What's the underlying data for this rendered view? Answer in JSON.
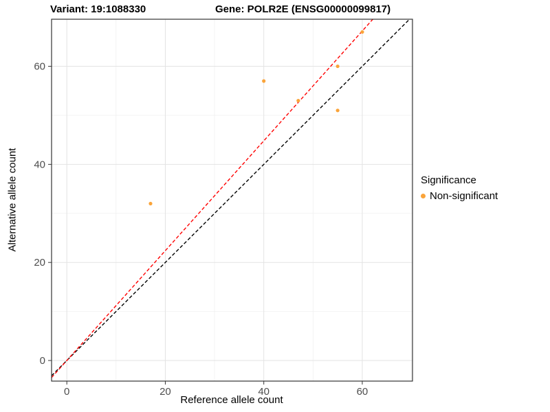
{
  "titles": {
    "left": "Variant: 19:1088330",
    "right": "Gene: POLR2E (ENSG00000099817)"
  },
  "legend": {
    "title": "Significance",
    "items": [
      {
        "label": "Non-significant",
        "color": "#FAA43A"
      }
    ]
  },
  "chart_data": {
    "type": "scatter",
    "xlabel": "Reference allele count",
    "ylabel": "Alternative allele count",
    "xlim": [
      -3.1,
      70.2
    ],
    "ylim": [
      -4.2,
      69.6
    ],
    "xticks": [
      0,
      20,
      40,
      60
    ],
    "yticks": [
      0,
      20,
      40,
      60
    ],
    "minor_xticks": [
      10,
      30,
      50,
      70
    ],
    "minor_yticks": [
      10,
      30,
      50
    ],
    "grid": true,
    "legend_position": "right",
    "series": [
      {
        "name": "Non-significant",
        "color": "#FAA43A",
        "points": [
          [
            17,
            32
          ],
          [
            40,
            57
          ],
          [
            47,
            53
          ],
          [
            55,
            60
          ],
          [
            55,
            51
          ],
          [
            60,
            67
          ]
        ]
      }
    ],
    "lines": [
      {
        "name": "identity-line",
        "slope": 1.0,
        "intercept": 0.0,
        "color": "#000000",
        "dash": "5 3"
      },
      {
        "name": "fit-line",
        "slope": 1.12,
        "intercept": 0.0,
        "color": "#FF0000",
        "dash": "5 3"
      }
    ]
  }
}
